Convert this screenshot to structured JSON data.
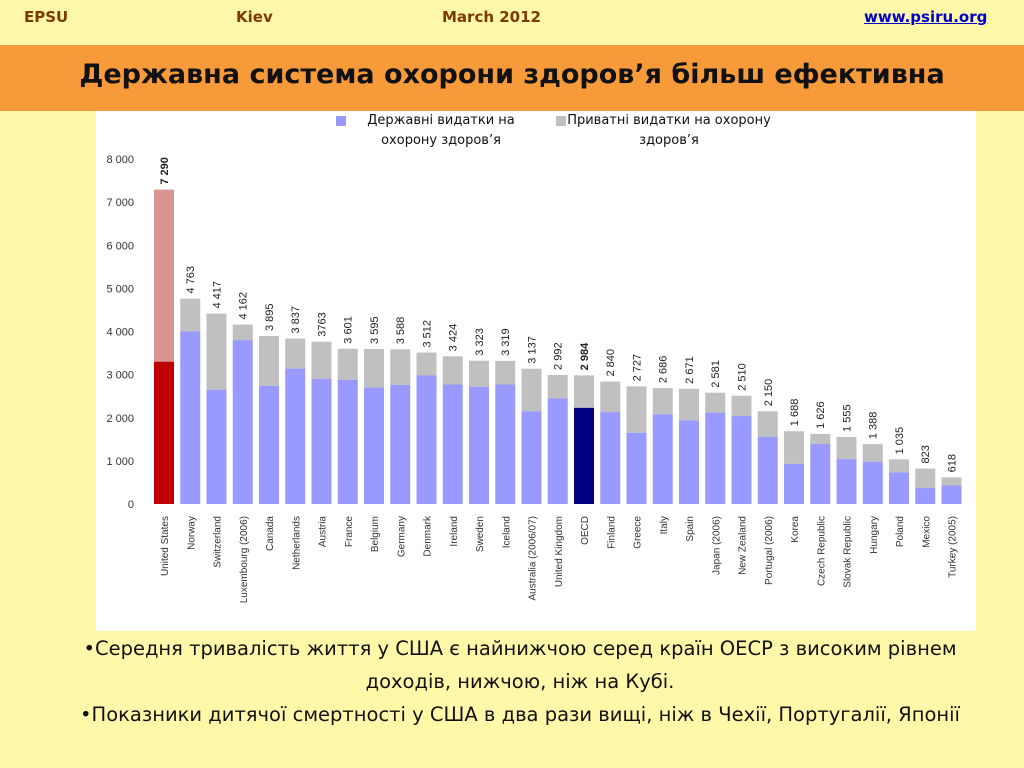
{
  "header": {
    "org": "EPSU",
    "city": "Kiev",
    "date": "March 2012",
    "site": "www.psiru.org"
  },
  "title": "Державна система охорони здоров’я більш ефективна",
  "legend": {
    "public": "Державні видатки на охорону здоров’я",
    "private": "Приватні видатки на охорону здоров’я"
  },
  "colors": {
    "public": "#9999ff",
    "private": "#c0c0c0",
    "us_public": "#c00000",
    "us_private": "#d99594",
    "oecd_public": "#000080",
    "oecd_private": "#c0c0c0"
  },
  "chart_data": {
    "type": "bar",
    "stacked": true,
    "ylim": [
      0,
      8000
    ],
    "yticks": [
      "0",
      "1 000",
      "2 000",
      "3 000",
      "4 000",
      "5 000",
      "6 000",
      "7 000",
      "8 000"
    ],
    "categories": [
      "United States",
      "Norway",
      "Switzerland",
      "Luxembourg (2006)",
      "Canada",
      "Netherlands",
      "Austria",
      "France",
      "Belgium",
      "Germany",
      "Denmark",
      "Ireland",
      "Sweden",
      "Iceland",
      "Australia (2006/07)",
      "United Kingdom",
      "OECD",
      "Finland",
      "Greece",
      "Italy",
      "Spain",
      "Japan (2006)",
      "New Zealand",
      "Portugal (2006)",
      "Korea",
      "Czech Republic",
      "Slovak Republic",
      "Hungary",
      "Poland",
      "Mexico",
      "Turkey (2005)"
    ],
    "total_labels": [
      "7 290",
      "4 763",
      "4 417",
      "4 162",
      "3 895",
      "3 837",
      "3763",
      "3 601",
      "3 595",
      "3 588",
      "3 512",
      "3 424",
      "3 323",
      "3 319",
      "3 137",
      "2 992",
      "2 984",
      "2 840",
      "2 727",
      "2 686",
      "2 671",
      "2 581",
      "2 510",
      "2 150",
      "1 688",
      "1 626",
      "1 555",
      "1 388",
      "1 035",
      "823",
      "618"
    ],
    "totals": [
      7290,
      4763,
      4417,
      4162,
      3895,
      3837,
      3763,
      3601,
      3595,
      3588,
      3512,
      3424,
      3323,
      3319,
      3137,
      2992,
      2984,
      2840,
      2727,
      2686,
      2671,
      2581,
      2510,
      2150,
      1688,
      1626,
      1555,
      1388,
      1035,
      823,
      618
    ],
    "series": [
      {
        "name": "Державні видатки на охорону здоров’я",
        "values": [
          3300,
          4000,
          2650,
          3800,
          2740,
          3140,
          2900,
          2880,
          2700,
          2760,
          2980,
          2770,
          2720,
          2770,
          2150,
          2450,
          2230,
          2130,
          1650,
          2080,
          1940,
          2120,
          2040,
          1560,
          930,
          1390,
          1040,
          980,
          730,
          370,
          430
        ]
      },
      {
        "name": "Приватні видатки на охорону здоров’я",
        "values": [
          3990,
          763,
          1767,
          362,
          1155,
          697,
          863,
          721,
          895,
          828,
          532,
          654,
          603,
          549,
          987,
          542,
          754,
          710,
          1077,
          606,
          731,
          461,
          470,
          590,
          758,
          236,
          515,
          408,
          305,
          453,
          188
        ]
      }
    ]
  },
  "bullets": [
    "•Середня тривалість життя у США є найнижчою серед країн ОЕСР з високим рівнем доходів, нижчою, ніж на Кубі.",
    "•Показники дитячої смертності у США в два рази вищі, ніж в Чехії, Португалії, Японії"
  ]
}
